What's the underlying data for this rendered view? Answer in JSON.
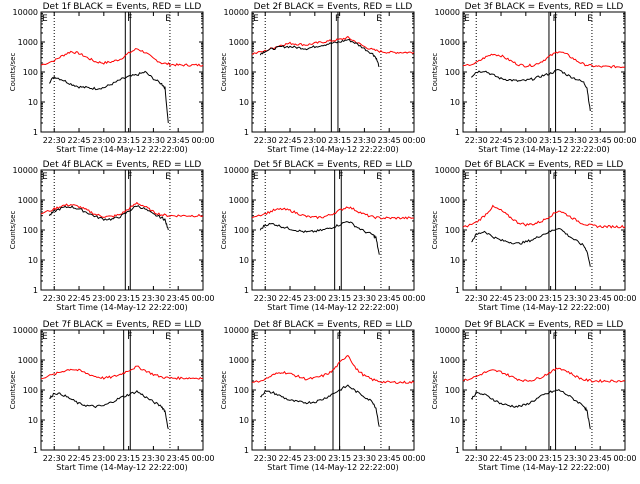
{
  "colors": {
    "events": "#000000",
    "lld": "#ff0000",
    "axis": "#000000",
    "background": "#ffffff"
  },
  "common": {
    "ylabel": "Counts/sec",
    "xlabel": "Start Time (14-May-12 22:22:00)",
    "xticks": [
      "22:30",
      "22:45",
      "23:00",
      "23:15",
      "23:30",
      "23:45",
      "00:00"
    ],
    "yticks": [
      "1",
      "10",
      "100",
      "1000",
      "10000"
    ],
    "markers": [
      "F",
      "E"
    ],
    "xlim_minutes": [
      22,
      120
    ],
    "ylim_log10": [
      0,
      4
    ]
  },
  "chart_data": [
    {
      "type": "line",
      "title": "Det 1f BLACK = Events, RED = LLD",
      "yscale": "log",
      "xlim": [
        22,
        120
      ],
      "ylim": [
        1,
        10000
      ],
      "series": [
        {
          "color": "#ff0000",
          "x": [
            22,
            30,
            35,
            40,
            45,
            50,
            55,
            60,
            65,
            70,
            75,
            80,
            85,
            90,
            95,
            100,
            105,
            110,
            115,
            120
          ],
          "values": [
            170,
            240,
            350,
            480,
            420,
            300,
            220,
            200,
            220,
            270,
            420,
            600,
            450,
            280,
            200,
            180,
            170,
            170,
            170,
            170
          ]
        },
        {
          "color": "#000000",
          "x": [
            27,
            30,
            35,
            40,
            45,
            50,
            55,
            60,
            65,
            70,
            75,
            80,
            85,
            90,
            95,
            97,
            99
          ],
          "values": [
            45,
            70,
            55,
            40,
            32,
            30,
            28,
            30,
            40,
            55,
            70,
            80,
            100,
            60,
            40,
            30,
            2
          ]
        }
      ],
      "vlines_dotted": [
        30,
        100
      ],
      "vlines_solid": [
        73,
        76
      ],
      "marker_F": 76,
      "marker_E": 99
    },
    {
      "type": "line",
      "title": "Det 2f BLACK = Events, RED = LLD",
      "yscale": "log",
      "xlim": [
        22,
        120
      ],
      "ylim": [
        1,
        10000
      ],
      "series": [
        {
          "color": "#ff0000",
          "x": [
            22,
            30,
            35,
            40,
            45,
            50,
            55,
            60,
            65,
            70,
            75,
            80,
            85,
            90,
            95,
            100,
            105,
            110,
            115,
            120
          ],
          "values": [
            400,
            500,
            650,
            800,
            900,
            850,
            800,
            900,
            1000,
            1100,
            1200,
            1400,
            1000,
            700,
            550,
            480,
            450,
            450,
            450,
            450
          ]
        },
        {
          "color": "#000000",
          "x": [
            27,
            30,
            35,
            40,
            45,
            50,
            55,
            60,
            65,
            70,
            75,
            80,
            85,
            90,
            95,
            97,
            99
          ],
          "values": [
            400,
            500,
            600,
            700,
            700,
            650,
            600,
            700,
            800,
            900,
            1000,
            1200,
            900,
            600,
            400,
            300,
            150
          ]
        }
      ],
      "vlines_dotted": [
        30,
        100
      ],
      "vlines_solid": [
        70,
        74
      ],
      "marker_F": 74,
      "marker_E": 99
    },
    {
      "type": "line",
      "title": "Det 3f BLACK = Events, RED = LLD",
      "yscale": "log",
      "xlim": [
        22,
        120
      ],
      "ylim": [
        1,
        10000
      ],
      "series": [
        {
          "color": "#ff0000",
          "x": [
            22,
            30,
            35,
            40,
            45,
            50,
            55,
            60,
            65,
            70,
            75,
            80,
            85,
            90,
            95,
            100,
            105,
            110,
            115,
            120
          ],
          "values": [
            150,
            200,
            300,
            400,
            350,
            250,
            180,
            160,
            170,
            230,
            350,
            500,
            380,
            250,
            180,
            160,
            150,
            150,
            150,
            150
          ]
        },
        {
          "color": "#000000",
          "x": [
            27,
            30,
            35,
            40,
            45,
            50,
            55,
            60,
            65,
            70,
            75,
            80,
            85,
            90,
            95,
            97,
            99
          ],
          "values": [
            70,
            100,
            110,
            80,
            60,
            55,
            50,
            52,
            60,
            75,
            90,
            120,
            80,
            60,
            45,
            30,
            5
          ]
        }
      ],
      "vlines_dotted": [
        30,
        100
      ],
      "vlines_solid": [
        74,
        78
      ],
      "marker_F": 78,
      "marker_E": 99
    },
    {
      "type": "line",
      "title": "Det 4f BLACK = Events, RED = LLD",
      "yscale": "log",
      "xlim": [
        22,
        120
      ],
      "ylim": [
        1,
        10000
      ],
      "series": [
        {
          "color": "#ff0000",
          "x": [
            22,
            30,
            35,
            40,
            45,
            50,
            55,
            60,
            65,
            70,
            75,
            80,
            85,
            90,
            95,
            100,
            105,
            110,
            115,
            120
          ],
          "values": [
            350,
            500,
            650,
            700,
            600,
            450,
            330,
            280,
            280,
            330,
            500,
            800,
            600,
            400,
            320,
            300,
            300,
            300,
            300,
            300
          ]
        },
        {
          "color": "#000000",
          "x": [
            27,
            30,
            35,
            40,
            45,
            50,
            55,
            60,
            65,
            70,
            75,
            80,
            85,
            90,
            95,
            97,
            99
          ],
          "values": [
            300,
            420,
            550,
            600,
            500,
            380,
            280,
            230,
            230,
            280,
            420,
            650,
            500,
            330,
            260,
            220,
            100
          ]
        }
      ],
      "vlines_dotted": [
        30,
        100
      ],
      "vlines_solid": [
        73,
        76
      ],
      "marker_F": 76,
      "marker_E": 99
    },
    {
      "type": "line",
      "title": "Det 5f BLACK = Events, RED = LLD",
      "yscale": "log",
      "xlim": [
        22,
        120
      ],
      "ylim": [
        1,
        10000
      ],
      "series": [
        {
          "color": "#ff0000",
          "x": [
            22,
            30,
            35,
            40,
            45,
            50,
            55,
            60,
            65,
            70,
            75,
            80,
            85,
            90,
            95,
            100,
            105,
            110,
            115,
            120
          ],
          "values": [
            280,
            350,
            450,
            500,
            450,
            350,
            280,
            260,
            270,
            330,
            450,
            600,
            450,
            330,
            270,
            250,
            250,
            250,
            250,
            250
          ]
        },
        {
          "color": "#000000",
          "x": [
            27,
            30,
            35,
            40,
            45,
            50,
            55,
            60,
            65,
            70,
            75,
            80,
            85,
            90,
            95,
            97,
            99
          ],
          "values": [
            100,
            150,
            160,
            130,
            110,
            95,
            85,
            90,
            100,
            120,
            150,
            200,
            130,
            90,
            70,
            55,
            15
          ]
        }
      ],
      "vlines_dotted": [
        30,
        100
      ],
      "vlines_solid": [
        72,
        76
      ],
      "marker_F": 76,
      "marker_E": 99
    },
    {
      "type": "line",
      "title": "Det 6f BLACK = Events, RED = LLD",
      "yscale": "log",
      "xlim": [
        22,
        120
      ],
      "ylim": [
        1,
        10000
      ],
      "series": [
        {
          "color": "#ff0000",
          "x": [
            22,
            30,
            35,
            40,
            45,
            50,
            55,
            60,
            65,
            70,
            75,
            80,
            85,
            90,
            95,
            100,
            105,
            110,
            115,
            120
          ],
          "values": [
            120,
            180,
            300,
            600,
            450,
            280,
            180,
            150,
            160,
            200,
            300,
            450,
            320,
            220,
            160,
            140,
            130,
            130,
            130,
            130
          ]
        },
        {
          "color": "#000000",
          "x": [
            27,
            30,
            35,
            40,
            45,
            50,
            55,
            60,
            65,
            70,
            75,
            80,
            85,
            90,
            95,
            97,
            99
          ],
          "values": [
            40,
            70,
            90,
            60,
            45,
            40,
            35,
            40,
            50,
            70,
            90,
            120,
            70,
            45,
            30,
            20,
            6
          ]
        }
      ],
      "vlines_dotted": [
        30,
        100
      ],
      "vlines_solid": [
        74,
        78
      ],
      "marker_F": 78,
      "marker_E": 99
    },
    {
      "type": "line",
      "title": "Det 7f BLACK = Events, RED = LLD",
      "yscale": "log",
      "xlim": [
        22,
        120
      ],
      "ylim": [
        1,
        10000
      ],
      "series": [
        {
          "color": "#ff0000",
          "x": [
            22,
            30,
            35,
            40,
            45,
            50,
            55,
            60,
            65,
            70,
            75,
            80,
            85,
            90,
            95,
            100,
            105,
            110,
            115,
            120
          ],
          "values": [
            250,
            330,
            420,
            500,
            450,
            350,
            280,
            250,
            270,
            330,
            450,
            600,
            450,
            330,
            270,
            250,
            250,
            250,
            250,
            250
          ]
        },
        {
          "color": "#000000",
          "x": [
            27,
            30,
            35,
            40,
            45,
            50,
            55,
            60,
            65,
            70,
            75,
            80,
            85,
            90,
            95,
            97,
            99
          ],
          "values": [
            50,
            80,
            70,
            50,
            35,
            30,
            28,
            30,
            40,
            55,
            70,
            90,
            60,
            40,
            28,
            20,
            5
          ]
        }
      ],
      "vlines_dotted": [
        30,
        100
      ],
      "vlines_solid": [
        72,
        76
      ],
      "marker_F": 76,
      "marker_E": 99
    },
    {
      "type": "line",
      "title": "Det 8f BLACK = Events, RED = LLD",
      "yscale": "log",
      "xlim": [
        22,
        120
      ],
      "ylim": [
        1,
        10000
      ],
      "series": [
        {
          "color": "#ff0000",
          "x": [
            22,
            30,
            35,
            40,
            45,
            50,
            55,
            60,
            65,
            70,
            75,
            80,
            85,
            90,
            95,
            100,
            105,
            110,
            115,
            120
          ],
          "values": [
            170,
            230,
            320,
            400,
            350,
            280,
            230,
            250,
            300,
            400,
            800,
            1500,
            500,
            300,
            220,
            190,
            180,
            180,
            180,
            180
          ]
        },
        {
          "color": "#000000",
          "x": [
            27,
            30,
            35,
            40,
            45,
            50,
            55,
            60,
            65,
            70,
            75,
            80,
            85,
            90,
            95,
            97,
            99
          ],
          "values": [
            60,
            90,
            80,
            60,
            45,
            40,
            38,
            40,
            50,
            70,
            100,
            140,
            90,
            60,
            40,
            25,
            6
          ]
        }
      ],
      "vlines_dotted": [
        30,
        100
      ],
      "vlines_solid": [
        71,
        75
      ],
      "marker_F": 75,
      "marker_E": 99
    },
    {
      "type": "line",
      "title": "Det 9f BLACK = Events, RED = LLD",
      "yscale": "log",
      "xlim": [
        22,
        120
      ],
      "ylim": [
        1,
        10000
      ],
      "series": [
        {
          "color": "#ff0000",
          "x": [
            22,
            30,
            35,
            40,
            45,
            50,
            55,
            60,
            65,
            70,
            75,
            80,
            85,
            90,
            95,
            100,
            105,
            110,
            115,
            120
          ],
          "values": [
            200,
            280,
            380,
            450,
            400,
            300,
            230,
            200,
            220,
            280,
            400,
            550,
            420,
            290,
            220,
            200,
            200,
            200,
            200,
            200
          ]
        },
        {
          "color": "#000000",
          "x": [
            27,
            30,
            35,
            40,
            45,
            50,
            55,
            60,
            65,
            70,
            75,
            80,
            85,
            90,
            95,
            97,
            99
          ],
          "values": [
            50,
            80,
            70,
            50,
            35,
            30,
            28,
            32,
            45,
            65,
            85,
            100,
            70,
            45,
            30,
            20,
            5
          ]
        }
      ],
      "vlines_dotted": [
        30,
        100
      ],
      "vlines_solid": [
        74,
        78
      ],
      "marker_F": 78,
      "marker_E": 99
    }
  ]
}
